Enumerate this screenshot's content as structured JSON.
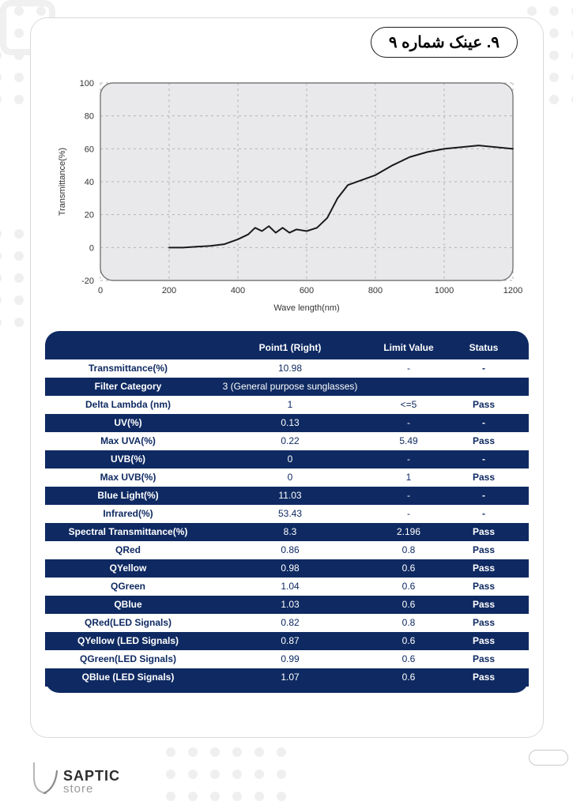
{
  "title": "۹. عینک شماره ۹",
  "chart": {
    "type": "line",
    "xlabel": "Wave length(nm)",
    "ylabel": "Transmittance(%)",
    "label_fontsize": 11,
    "title_fontsize": 11,
    "plot_bg": "#e9e8ea",
    "plot_border": "#757575",
    "grid_color": "#b4b3b5",
    "line_color": "#1a1a1a",
    "line_width": 2,
    "xlim": [
      0,
      1200
    ],
    "ylim": [
      -20,
      100
    ],
    "xticks": [
      0,
      200,
      400,
      600,
      800,
      1000,
      1200
    ],
    "yticks": [
      -20,
      0,
      20,
      40,
      60,
      80,
      100
    ],
    "data": [
      [
        200,
        0
      ],
      [
        240,
        0
      ],
      [
        280,
        0.5
      ],
      [
        320,
        1
      ],
      [
        360,
        2
      ],
      [
        400,
        5
      ],
      [
        430,
        8
      ],
      [
        450,
        12
      ],
      [
        470,
        10
      ],
      [
        490,
        13
      ],
      [
        510,
        9
      ],
      [
        530,
        12
      ],
      [
        550,
        9
      ],
      [
        570,
        11
      ],
      [
        600,
        10
      ],
      [
        630,
        12
      ],
      [
        660,
        18
      ],
      [
        690,
        30
      ],
      [
        720,
        38
      ],
      [
        760,
        41
      ],
      [
        800,
        44
      ],
      [
        850,
        50
      ],
      [
        900,
        55
      ],
      [
        950,
        58
      ],
      [
        1000,
        60
      ],
      [
        1050,
        61
      ],
      [
        1100,
        62
      ],
      [
        1150,
        61
      ],
      [
        1200,
        60
      ]
    ]
  },
  "table": {
    "headers": [
      "",
      "Point1  (Right)",
      "Limit Value",
      "Status"
    ],
    "rows": [
      {
        "c": "white",
        "label": "Transmittance(%)",
        "p": "10.98",
        "lim": "-",
        "st": "-"
      },
      {
        "c": "navy",
        "label": "Filter Category",
        "p": "3 (General purpose sunglasses)",
        "lim": "",
        "st": ""
      },
      {
        "c": "white",
        "label": "Delta Lambda (nm)",
        "p": "1",
        "lim": "<=5",
        "st": "Pass"
      },
      {
        "c": "navy",
        "label": "UV(%)",
        "p": "0.13",
        "lim": "-",
        "st": "-"
      },
      {
        "c": "white",
        "label": "Max UVA(%)",
        "p": "0.22",
        "lim": "5.49",
        "st": "Pass"
      },
      {
        "c": "navy",
        "label": "UVB(%)",
        "p": "0",
        "lim": "-",
        "st": "-"
      },
      {
        "c": "white",
        "label": "Max UVB(%)",
        "p": "0",
        "lim": "1",
        "st": "Pass"
      },
      {
        "c": "navy",
        "label": "Blue Light(%)",
        "p": "11.03",
        "lim": "-",
        "st": "-"
      },
      {
        "c": "white",
        "label": "Infrared(%)",
        "p": "53.43",
        "lim": "-",
        "st": "-"
      },
      {
        "c": "navy",
        "label": "Spectral Transmittance(%)",
        "p": "8.3",
        "lim": "2.196",
        "st": "Pass"
      },
      {
        "c": "white",
        "label": "QRed",
        "p": "0.86",
        "lim": "0.8",
        "st": "Pass"
      },
      {
        "c": "navy",
        "label": "QYellow",
        "p": "0.98",
        "lim": "0.6",
        "st": "Pass"
      },
      {
        "c": "white",
        "label": "QGreen",
        "p": "1.04",
        "lim": "0.6",
        "st": "Pass"
      },
      {
        "c": "navy",
        "label": "QBlue",
        "p": "1.03",
        "lim": "0.6",
        "st": "Pass"
      },
      {
        "c": "white",
        "label": "QRed(LED Signals)",
        "p": "0.82",
        "lim": "0.8",
        "st": "Pass"
      },
      {
        "c": "navy",
        "label": "QYellow (LED Signals)",
        "p": "0.87",
        "lim": "0.6",
        "st": "Pass"
      },
      {
        "c": "white",
        "label": "QGreen(LED Signals)",
        "p": "0.99",
        "lim": "0.6",
        "st": "Pass"
      },
      {
        "c": "navy",
        "label": "QBlue (LED Signals)",
        "p": "1.07",
        "lim": "0.6",
        "st": "Pass"
      }
    ],
    "colors": {
      "navy": "#0f2a62",
      "white": "#ffffff"
    }
  },
  "footer": {
    "brand_top": "SAPTIC",
    "brand_bot": "store"
  }
}
